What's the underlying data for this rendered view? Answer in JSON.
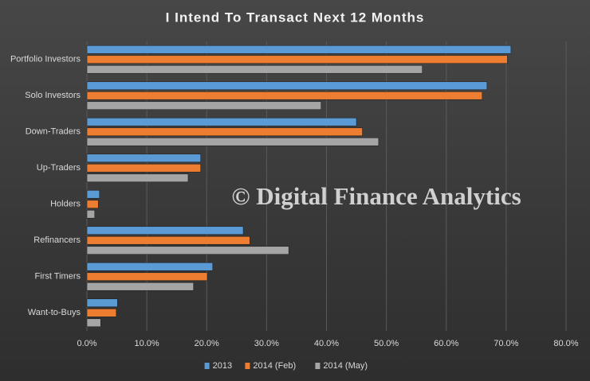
{
  "chart_data": {
    "type": "hbar",
    "title": "I Intend To Transact  Next 12 Months",
    "watermark": "© Digital Finance Analytics",
    "categories": [
      "Portfolio Investors",
      "Solo Investors",
      "Down-Traders",
      "Up-Traders",
      "Holders",
      "Refinancers",
      "First Timers",
      "Want-to-Buys"
    ],
    "series": [
      {
        "name": "2013",
        "color": "#5b9bd5",
        "values": [
          70.8,
          66.8,
          45,
          19,
          2.1,
          26.1,
          21,
          5.1
        ]
      },
      {
        "name": "2014 (Feb)",
        "color": "#ed7d31",
        "values": [
          70.2,
          66,
          46,
          19,
          1.9,
          27.2,
          20.1,
          4.9
        ]
      },
      {
        "name": "2014 (May)",
        "color": "#a5a5a5",
        "values": [
          56,
          39.1,
          48.7,
          16.9,
          1.3,
          33.7,
          17.8,
          2.3
        ]
      }
    ],
    "xlim": [
      0,
      80
    ],
    "xticks": [
      {
        "value": 0,
        "label": "0.0%"
      },
      {
        "value": 10,
        "label": "10.0%"
      },
      {
        "value": 20,
        "label": "20.0%"
      },
      {
        "value": 30,
        "label": "30.0%"
      },
      {
        "value": 40,
        "label": "40.0%"
      },
      {
        "value": 50,
        "label": "50.0%"
      },
      {
        "value": 60,
        "label": "60.0%"
      },
      {
        "value": 70,
        "label": "70.0%"
      },
      {
        "value": 80,
        "label": "80.0%"
      }
    ],
    "grid": true
  }
}
